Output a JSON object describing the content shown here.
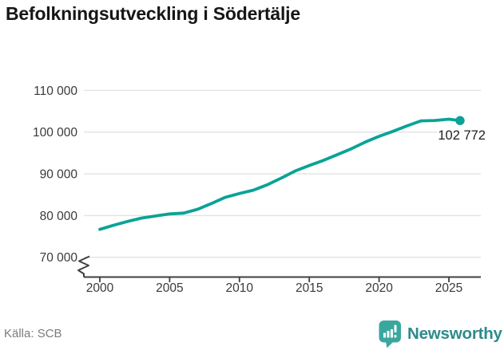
{
  "title": "Befolkningsutveckling i Södertälje",
  "source": "Källa: SCB",
  "branding": {
    "name": "Newsworthy",
    "icon": "newsworthy-bubble-barchart-icon"
  },
  "colors": {
    "line": "#0aa396",
    "marker": "#0aa396",
    "grid": "#e2e2e2",
    "axis": "#3f3f3f",
    "tick_label": "#3a3a3a",
    "title": "#161616",
    "annotation": "#1f1f1f",
    "source_text": "#7c7c7c",
    "logo_icon": "#3aa79f",
    "logo_text": "#2e8a8c"
  },
  "chart_data": {
    "type": "line",
    "title": "Befolkningsutveckling i Södertälje",
    "xlabel": "",
    "ylabel": "",
    "grid": "horizontal",
    "legend": "none",
    "axis_break_bottom": true,
    "x": [
      2000,
      2001,
      2002,
      2003,
      2004,
      2005,
      2006,
      2007,
      2008,
      2009,
      2010,
      2011,
      2012,
      2013,
      2014,
      2015,
      2016,
      2017,
      2018,
      2019,
      2020,
      2021,
      2022,
      2023,
      2024,
      2025,
      2025.8
    ],
    "values": [
      76700,
      77700,
      78600,
      79400,
      79900,
      80400,
      80600,
      81500,
      82900,
      84400,
      85300,
      86100,
      87400,
      89000,
      90700,
      92000,
      93200,
      94600,
      96000,
      97600,
      99000,
      100200,
      101500,
      102700,
      102800,
      103100,
      102772
    ],
    "last_value": 102772,
    "last_value_label": "102 772",
    "y_ticks": [
      110000,
      100000,
      90000,
      80000,
      70000
    ],
    "y_tick_labels": [
      "110 000",
      "100 000",
      "90 000",
      "80 000",
      "70 000"
    ],
    "x_ticks": [
      2000,
      2005,
      2010,
      2015,
      2020,
      2025
    ],
    "x_tick_labels": [
      "2000",
      "2005",
      "2010",
      "2015",
      "2020",
      "2025"
    ],
    "xlim": [
      1998.85,
      2027.3
    ],
    "ylim": [
      65500,
      112500
    ]
  }
}
